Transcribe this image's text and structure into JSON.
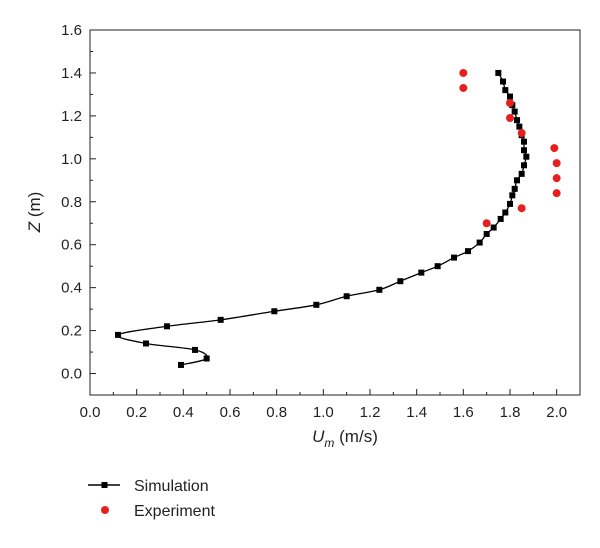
{
  "chart_data": {
    "type": "scatter",
    "xlabel": "U",
    "xlabel_sub": "m",
    "xlabel_unit": " (m/s)",
    "ylabel": "Z",
    "ylabel_unit": " (m)",
    "xlim": [
      0.0,
      2.1
    ],
    "ylim": [
      -0.1,
      1.6
    ],
    "xticks": [
      "0.0",
      "0.2",
      "0.4",
      "0.6",
      "0.8",
      "1.0",
      "1.2",
      "1.4",
      "1.6",
      "1.8",
      "2.0"
    ],
    "yticks": [
      "0.0",
      "0.2",
      "0.4",
      "0.6",
      "0.8",
      "1.0",
      "1.2",
      "1.4",
      "1.6"
    ],
    "grid": false,
    "legend_position": "bottom-left, below plot",
    "series": [
      {
        "name": "Simulation",
        "color": "#000000",
        "marker": "square",
        "line": true,
        "points": [
          [
            0.39,
            0.04
          ],
          [
            0.5,
            0.07
          ],
          [
            0.45,
            0.11
          ],
          [
            0.24,
            0.14
          ],
          [
            0.12,
            0.18
          ],
          [
            0.33,
            0.22
          ],
          [
            0.56,
            0.25
          ],
          [
            0.79,
            0.29
          ],
          [
            0.97,
            0.32
          ],
          [
            1.1,
            0.36
          ],
          [
            1.24,
            0.39
          ],
          [
            1.33,
            0.43
          ],
          [
            1.42,
            0.47
          ],
          [
            1.49,
            0.5
          ],
          [
            1.56,
            0.54
          ],
          [
            1.62,
            0.57
          ],
          [
            1.67,
            0.61
          ],
          [
            1.7,
            0.65
          ],
          [
            1.73,
            0.68
          ],
          [
            1.76,
            0.72
          ],
          [
            1.78,
            0.75
          ],
          [
            1.8,
            0.79
          ],
          [
            1.81,
            0.83
          ],
          [
            1.82,
            0.86
          ],
          [
            1.83,
            0.9
          ],
          [
            1.85,
            0.93
          ],
          [
            1.86,
            0.97
          ],
          [
            1.87,
            1.01
          ],
          [
            1.86,
            1.04
          ],
          [
            1.86,
            1.08
          ],
          [
            1.85,
            1.11
          ],
          [
            1.84,
            1.15
          ],
          [
            1.83,
            1.18
          ],
          [
            1.82,
            1.22
          ],
          [
            1.81,
            1.25
          ],
          [
            1.8,
            1.29
          ],
          [
            1.78,
            1.32
          ],
          [
            1.77,
            1.36
          ],
          [
            1.75,
            1.4
          ]
        ]
      },
      {
        "name": "Experiment",
        "color": "#e8201d",
        "marker": "circle",
        "line": false,
        "points": [
          [
            1.6,
            1.4
          ],
          [
            1.6,
            1.33
          ],
          [
            1.8,
            1.26
          ],
          [
            1.8,
            1.19
          ],
          [
            1.85,
            1.12
          ],
          [
            1.99,
            1.05
          ],
          [
            2.0,
            0.98
          ],
          [
            2.0,
            0.91
          ],
          [
            2.0,
            0.84
          ],
          [
            1.85,
            0.77
          ],
          [
            1.7,
            0.7
          ]
        ]
      }
    ]
  }
}
